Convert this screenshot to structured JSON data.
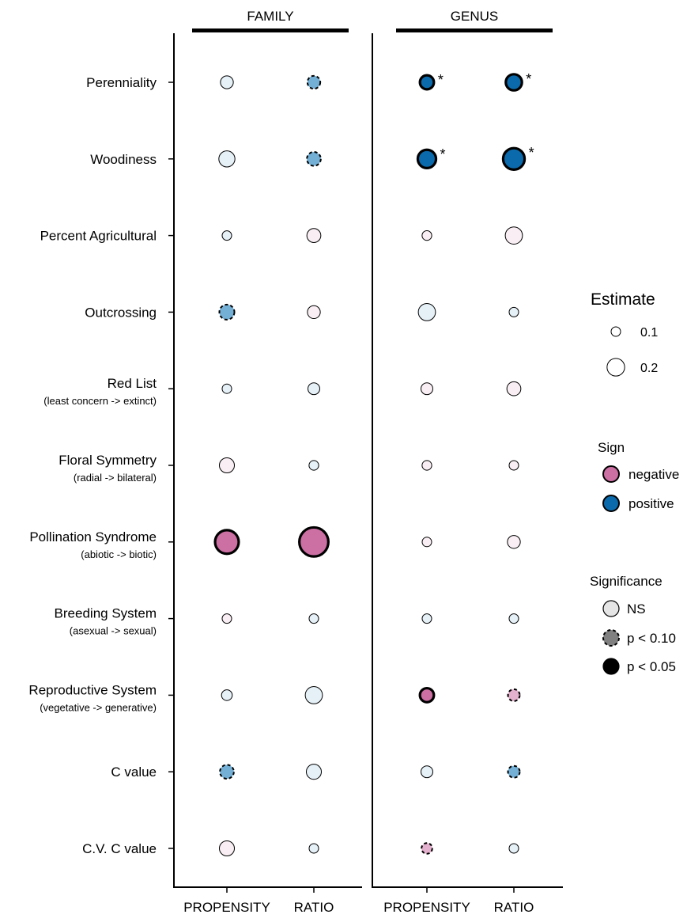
{
  "chart_data": {
    "type": "scatter",
    "groups": [
      {
        "label": "FAMILY",
        "columns": [
          "PROPENSITY",
          "RATIO"
        ]
      },
      {
        "label": "GENUS",
        "columns": [
          "PROPENSITY",
          "RATIO"
        ]
      }
    ],
    "rows": [
      {
        "label": "Perenniality",
        "sub": ""
      },
      {
        "label": "Woodiness",
        "sub": ""
      },
      {
        "label": "Percent Agricultural",
        "sub": ""
      },
      {
        "label": "Outcrossing",
        "sub": ""
      },
      {
        "label": "Red List",
        "sub": "(least concern  -> extinct)"
      },
      {
        "label": "Floral Symmetry",
        "sub": "(radial -> bilateral)"
      },
      {
        "label": "Pollination Syndrome",
        "sub": "(abiotic -> biotic)"
      },
      {
        "label": "Breeding System",
        "sub": "(asexual -> sexual)"
      },
      {
        "label": "Reproductive System",
        "sub": "(vegetative -> generative)"
      },
      {
        "label": "C value",
        "sub": ""
      },
      {
        "label": "C.V. C value",
        "sub": ""
      }
    ],
    "points": [
      {
        "row": 0,
        "col": 0,
        "estimate": 0.12,
        "sign": "positive",
        "sig": "NS",
        "star": ""
      },
      {
        "row": 0,
        "col": 1,
        "estimate": 0.12,
        "sign": "positive",
        "sig": "p < 0.10",
        "star": ""
      },
      {
        "row": 0,
        "col": 2,
        "estimate": 0.13,
        "sign": "positive",
        "sig": "p < 0.05",
        "star": "*"
      },
      {
        "row": 0,
        "col": 3,
        "estimate": 0.15,
        "sign": "positive",
        "sig": "p < 0.05",
        "star": "*"
      },
      {
        "row": 1,
        "col": 0,
        "estimate": 0.15,
        "sign": "positive",
        "sig": "NS",
        "star": ""
      },
      {
        "row": 1,
        "col": 1,
        "estimate": 0.13,
        "sign": "positive",
        "sig": "p < 0.10",
        "star": ""
      },
      {
        "row": 1,
        "col": 2,
        "estimate": 0.17,
        "sign": "positive",
        "sig": "p < 0.05",
        "star": "*"
      },
      {
        "row": 1,
        "col": 3,
        "estimate": 0.2,
        "sign": "positive",
        "sig": "p < 0.05",
        "star": "*"
      },
      {
        "row": 2,
        "col": 0,
        "estimate": 0.04,
        "sign": "positive",
        "sig": "NS",
        "star": ""
      },
      {
        "row": 2,
        "col": 1,
        "estimate": 0.13,
        "sign": "negative",
        "sig": "NS",
        "star": ""
      },
      {
        "row": 2,
        "col": 2,
        "estimate": 0.09,
        "sign": "negative",
        "sig": "NS",
        "star": ""
      },
      {
        "row": 2,
        "col": 3,
        "estimate": 0.16,
        "sign": "negative",
        "sig": "NS",
        "star": ""
      },
      {
        "row": 3,
        "col": 0,
        "estimate": 0.14,
        "sign": "positive",
        "sig": "p < 0.10",
        "star": ""
      },
      {
        "row": 3,
        "col": 1,
        "estimate": 0.12,
        "sign": "negative",
        "sig": "NS",
        "star": ""
      },
      {
        "row": 3,
        "col": 2,
        "estimate": 0.16,
        "sign": "positive",
        "sig": "NS",
        "star": ""
      },
      {
        "row": 3,
        "col": 3,
        "estimate": 0.07,
        "sign": "positive",
        "sig": "NS",
        "star": ""
      },
      {
        "row": 4,
        "col": 0,
        "estimate": 0.06,
        "sign": "positive",
        "sig": "NS",
        "star": ""
      },
      {
        "row": 4,
        "col": 1,
        "estimate": 0.11,
        "sign": "positive",
        "sig": "NS",
        "star": ""
      },
      {
        "row": 4,
        "col": 2,
        "estimate": 0.11,
        "sign": "negative",
        "sig": "NS",
        "star": ""
      },
      {
        "row": 4,
        "col": 3,
        "estimate": 0.13,
        "sign": "negative",
        "sig": "NS",
        "star": ""
      },
      {
        "row": 5,
        "col": 0,
        "estimate": 0.14,
        "sign": "negative",
        "sig": "NS",
        "star": ""
      },
      {
        "row": 5,
        "col": 1,
        "estimate": 0.09,
        "sign": "positive",
        "sig": "NS",
        "star": ""
      },
      {
        "row": 5,
        "col": 2,
        "estimate": 0.09,
        "sign": "negative",
        "sig": "NS",
        "star": ""
      },
      {
        "row": 5,
        "col": 3,
        "estimate": 0.07,
        "sign": "negative",
        "sig": "NS",
        "star": ""
      },
      {
        "row": 6,
        "col": 0,
        "estimate": 0.22,
        "sign": "negative",
        "sig": "p < 0.05",
        "star": ""
      },
      {
        "row": 6,
        "col": 1,
        "estimate": 0.27,
        "sign": "negative",
        "sig": "p < 0.05",
        "star": ""
      },
      {
        "row": 6,
        "col": 2,
        "estimate": 0.05,
        "sign": "negative",
        "sig": "NS",
        "star": ""
      },
      {
        "row": 6,
        "col": 3,
        "estimate": 0.12,
        "sign": "negative",
        "sig": "NS",
        "star": ""
      },
      {
        "row": 7,
        "col": 0,
        "estimate": 0.08,
        "sign": "negative",
        "sig": "NS",
        "star": ""
      },
      {
        "row": 7,
        "col": 1,
        "estimate": 0.06,
        "sign": "positive",
        "sig": "NS",
        "star": ""
      },
      {
        "row": 7,
        "col": 2,
        "estimate": 0.06,
        "sign": "positive",
        "sig": "NS",
        "star": ""
      },
      {
        "row": 7,
        "col": 3,
        "estimate": 0.07,
        "sign": "positive",
        "sig": "NS",
        "star": ""
      },
      {
        "row": 8,
        "col": 0,
        "estimate": 0.1,
        "sign": "positive",
        "sig": "NS",
        "star": ""
      },
      {
        "row": 8,
        "col": 1,
        "estimate": 0.16,
        "sign": "positive",
        "sig": "NS",
        "star": ""
      },
      {
        "row": 8,
        "col": 2,
        "estimate": 0.13,
        "sign": "negative",
        "sig": "p < 0.05",
        "star": ""
      },
      {
        "row": 8,
        "col": 3,
        "estimate": 0.11,
        "sign": "negative",
        "sig": "p < 0.10",
        "star": ""
      },
      {
        "row": 9,
        "col": 0,
        "estimate": 0.13,
        "sign": "positive",
        "sig": "p < 0.10",
        "star": ""
      },
      {
        "row": 9,
        "col": 1,
        "estimate": 0.14,
        "sign": "positive",
        "sig": "NS",
        "star": ""
      },
      {
        "row": 9,
        "col": 2,
        "estimate": 0.11,
        "sign": "positive",
        "sig": "NS",
        "star": ""
      },
      {
        "row": 9,
        "col": 3,
        "estimate": 0.11,
        "sign": "positive",
        "sig": "p < 0.10",
        "star": ""
      },
      {
        "row": 10,
        "col": 0,
        "estimate": 0.14,
        "sign": "negative",
        "sig": "NS",
        "star": ""
      },
      {
        "row": 10,
        "col": 1,
        "estimate": 0.04,
        "sign": "positive",
        "sig": "NS",
        "star": ""
      },
      {
        "row": 10,
        "col": 2,
        "estimate": 0.1,
        "sign": "negative",
        "sig": "p < 0.10",
        "star": ""
      },
      {
        "row": 10,
        "col": 3,
        "estimate": 0.05,
        "sign": "positive",
        "sig": "NS",
        "star": ""
      }
    ],
    "legend": {
      "estimate_title": "Estimate",
      "estimate_items": [
        {
          "label": "0.1",
          "value": 0.1
        },
        {
          "label": "0.2",
          "value": 0.2
        }
      ],
      "sign_title": "Sign",
      "sign_items": [
        {
          "label": "negative",
          "key": "negative"
        },
        {
          "label": "positive",
          "key": "positive"
        }
      ],
      "significance_title": "Significance",
      "significance_items": [
        {
          "label": "NS",
          "key": "NS"
        },
        {
          "label": "p < 0.10",
          "key": "p < 0.10"
        },
        {
          "label": "p < 0.05",
          "key": "p < 0.05"
        }
      ],
      "placement": "right"
    },
    "colors": {
      "negative_strong": "#cc6fa3",
      "negative_medium": "#e3b0cd",
      "negative_light": "#f8eef3",
      "positive_strong": "#0b6aab",
      "positive_medium": "#74b0d6",
      "positive_light": "#e5f0f7",
      "ns_key": "#e5e5e5",
      "p10_key": "#808080",
      "p05_key": "#000000"
    }
  }
}
